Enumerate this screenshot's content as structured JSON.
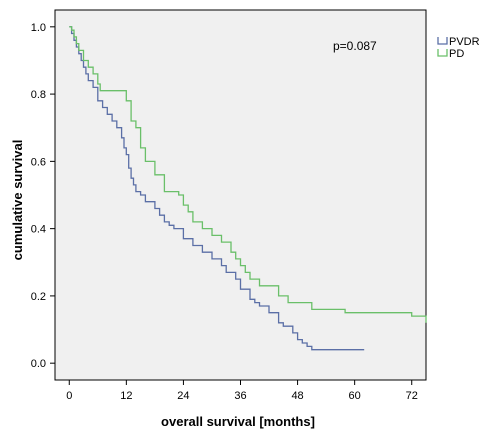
{
  "chart_data": {
    "type": "line",
    "step": true,
    "title": "",
    "xlabel": "overall survival [months]",
    "ylabel": "cumulative survival",
    "xlim": [
      -3,
      75
    ],
    "ylim": [
      -0.05,
      1.05
    ],
    "x_ticks": [
      0,
      12,
      24,
      36,
      48,
      60,
      72
    ],
    "x_tick_labels": [
      "0",
      "12",
      "24",
      "36",
      "48",
      "60",
      "72"
    ],
    "y_ticks": [
      0.0,
      0.2,
      0.4,
      0.6,
      0.8,
      1.0
    ],
    "y_tick_labels": [
      "0.0",
      "0.2",
      "0.4",
      "0.6",
      "0.8",
      "1.0"
    ],
    "plot_background": "#f0f0f0",
    "grid": false,
    "legend_position": "right, outside plot",
    "annotations": [
      {
        "text": "p=0.087"
      }
    ],
    "series": [
      {
        "name": "PVDR",
        "color": "#5b6fa6",
        "x": [
          0,
          0.5,
          1,
          1.5,
          2,
          2.5,
          3,
          3.5,
          4,
          5,
          6,
          7,
          8,
          9,
          10,
          11,
          11.5,
          12,
          12.5,
          13,
          13.5,
          14,
          15,
          16,
          18,
          19,
          20,
          21,
          22,
          24,
          26,
          28,
          30,
          32,
          33,
          35,
          36,
          38,
          39,
          40,
          42,
          44,
          45,
          47,
          48,
          49,
          50,
          51,
          62
        ],
        "y": [
          1.0,
          0.98,
          0.96,
          0.94,
          0.92,
          0.9,
          0.88,
          0.86,
          0.84,
          0.82,
          0.78,
          0.76,
          0.74,
          0.72,
          0.7,
          0.67,
          0.64,
          0.62,
          0.58,
          0.55,
          0.53,
          0.51,
          0.5,
          0.48,
          0.46,
          0.44,
          0.42,
          0.41,
          0.4,
          0.37,
          0.35,
          0.33,
          0.31,
          0.29,
          0.27,
          0.25,
          0.22,
          0.19,
          0.18,
          0.17,
          0.15,
          0.12,
          0.11,
          0.09,
          0.07,
          0.06,
          0.05,
          0.04,
          0.04
        ]
      },
      {
        "name": "PD",
        "color": "#6abf69",
        "x": [
          0,
          0.5,
          1,
          1.5,
          2,
          3,
          4,
          5,
          6,
          6.5,
          12,
          13,
          14,
          15,
          16,
          18,
          20,
          23,
          24,
          25,
          26,
          28,
          30,
          32,
          34,
          35,
          36,
          37,
          38,
          40,
          44,
          46,
          51,
          58,
          72,
          76
        ],
        "y": [
          1.0,
          0.99,
          0.97,
          0.95,
          0.93,
          0.9,
          0.88,
          0.86,
          0.83,
          0.81,
          0.78,
          0.72,
          0.7,
          0.64,
          0.6,
          0.56,
          0.51,
          0.5,
          0.47,
          0.45,
          0.42,
          0.4,
          0.38,
          0.36,
          0.33,
          0.31,
          0.29,
          0.27,
          0.25,
          0.23,
          0.2,
          0.18,
          0.16,
          0.15,
          0.14,
          0.12
        ]
      }
    ]
  }
}
